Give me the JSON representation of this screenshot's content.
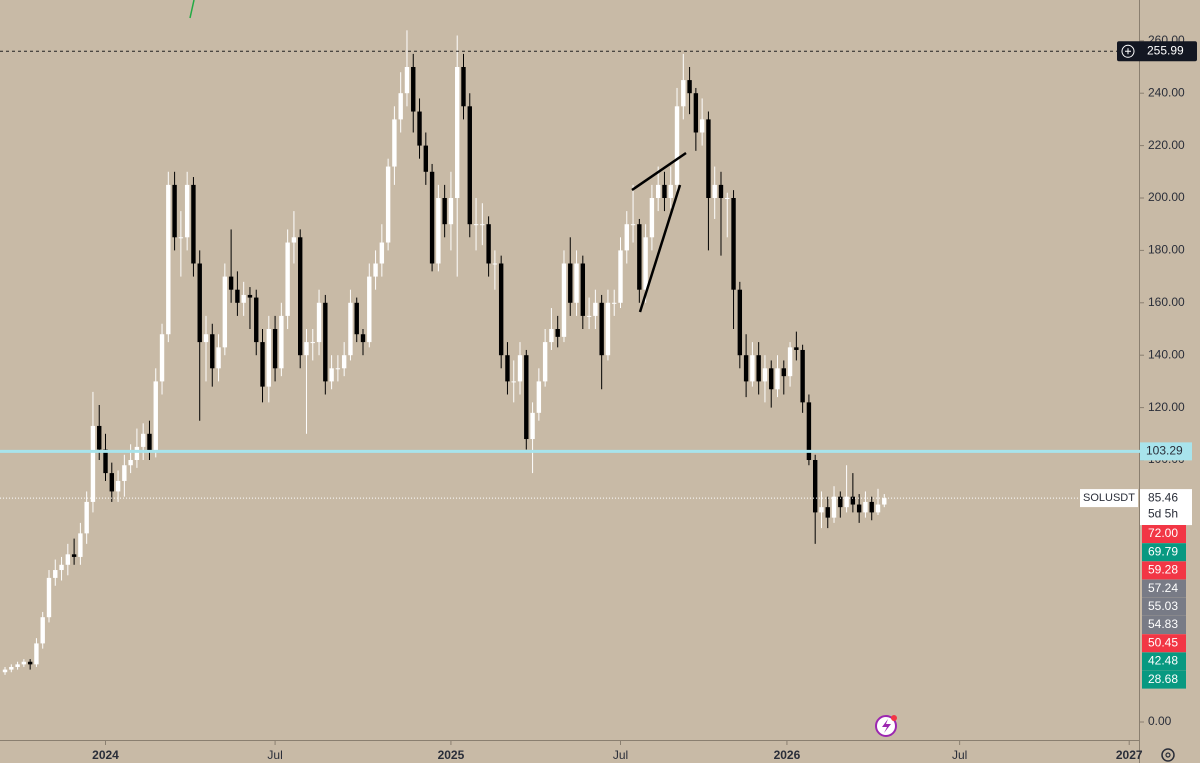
{
  "chart_data": {
    "type": "candlestick",
    "symbol": "SOLUSDT",
    "countdown": "5d 5h",
    "up_color": "#ffffff",
    "down_color": "#000000",
    "last_price": {
      "value": 85.46,
      "label": "85.46"
    },
    "crosshair": {
      "value": 255.99,
      "label": "255.99"
    },
    "hline": {
      "value": 103.29,
      "label": "103.29",
      "color": "#a8e4ec"
    },
    "ylim": [
      -6.87,
      275.57
    ],
    "yticks": [
      {
        "value": 0,
        "label": "0.00"
      },
      {
        "value": 100,
        "label": "100.00"
      },
      {
        "value": 120,
        "label": "120.00"
      },
      {
        "value": 140,
        "label": "140.00"
      },
      {
        "value": 160,
        "label": "160.00"
      },
      {
        "value": 180,
        "label": "180.00"
      },
      {
        "value": 200,
        "label": "200.00"
      },
      {
        "value": 220,
        "label": "220.00"
      },
      {
        "value": 240,
        "label": "240.00"
      },
      {
        "value": 260,
        "label": "260.00"
      }
    ],
    "xlim": [
      -0.8,
      180.4
    ],
    "xticks": [
      {
        "value": 16,
        "label": "2024"
      },
      {
        "value": 43,
        "label": "Jul"
      },
      {
        "value": 71,
        "label": "2025"
      },
      {
        "value": 98,
        "label": "Jul"
      },
      {
        "value": 124.5,
        "label": "2026"
      },
      {
        "value": 152,
        "label": "Jul"
      },
      {
        "value": 179,
        "label": "2027"
      }
    ],
    "badges": [
      {
        "label": "72.00",
        "color": "#f23645"
      },
      {
        "label": "69.79",
        "color": "#089981"
      },
      {
        "label": "59.28",
        "color": "#f23645"
      },
      {
        "label": "57.24",
        "color": "#787b86"
      },
      {
        "label": "55.03",
        "color": "#787b86"
      },
      {
        "label": "54.83",
        "color": "#787b86"
      },
      {
        "label": "50.45",
        "color": "#f23645"
      },
      {
        "label": "42.48",
        "color": "#089981"
      },
      {
        "label": "28.68",
        "color": "#089981"
      }
    ],
    "ohlc": [
      [
        19,
        21,
        18,
        20
      ],
      [
        20,
        22,
        19,
        21
      ],
      [
        21,
        23,
        20,
        22
      ],
      [
        22,
        24,
        21,
        23
      ],
      [
        23,
        24,
        20,
        22
      ],
      [
        22,
        32,
        21,
        30
      ],
      [
        30,
        42,
        28,
        40
      ],
      [
        40,
        58,
        38,
        55
      ],
      [
        55,
        62,
        52,
        58
      ],
      [
        58,
        63,
        54,
        60
      ],
      [
        60,
        68,
        56,
        64
      ],
      [
        64,
        70,
        60,
        63
      ],
      [
        63,
        76,
        60,
        72
      ],
      [
        72,
        88,
        68,
        84
      ],
      [
        84,
        126,
        80,
        113
      ],
      [
        113,
        121,
        100,
        104
      ],
      [
        104,
        110,
        92,
        95
      ],
      [
        95,
        99,
        84,
        88
      ],
      [
        88,
        96,
        84,
        92
      ],
      [
        92,
        102,
        86,
        98
      ],
      [
        98,
        106,
        95,
        100
      ],
      [
        100,
        112,
        97,
        105
      ],
      [
        105,
        114,
        100,
        110
      ],
      [
        110,
        115,
        100,
        103
      ],
      [
        103,
        135,
        101,
        130
      ],
      [
        130,
        152,
        125,
        148
      ],
      [
        148,
        210,
        145,
        205
      ],
      [
        205,
        210,
        180,
        185
      ],
      [
        185,
        195,
        170,
        185
      ],
      [
        185,
        210,
        180,
        205
      ],
      [
        205,
        208,
        170,
        175
      ],
      [
        175,
        180,
        115,
        145
      ],
      [
        145,
        155,
        130,
        148
      ],
      [
        148,
        152,
        128,
        135
      ],
      [
        135,
        148,
        130,
        143
      ],
      [
        143,
        175,
        140,
        170
      ],
      [
        170,
        188,
        160,
        165
      ],
      [
        165,
        172,
        155,
        160
      ],
      [
        160,
        168,
        155,
        163
      ],
      [
        163,
        166,
        150,
        162
      ],
      [
        162,
        165,
        140,
        145
      ],
      [
        145,
        150,
        122,
        128
      ],
      [
        128,
        155,
        122,
        150
      ],
      [
        150,
        155,
        130,
        135
      ],
      [
        135,
        160,
        132,
        155
      ],
      [
        155,
        188,
        150,
        183
      ],
      [
        183,
        195,
        175,
        185
      ],
      [
        185,
        188,
        135,
        140
      ],
      [
        140,
        150,
        110,
        145
      ],
      [
        145,
        150,
        138,
        145
      ],
      [
        145,
        165,
        140,
        160
      ],
      [
        160,
        163,
        125,
        130
      ],
      [
        130,
        140,
        127,
        135
      ],
      [
        135,
        140,
        130,
        135
      ],
      [
        135,
        145,
        132,
        140
      ],
      [
        140,
        165,
        138,
        160
      ],
      [
        160,
        162,
        145,
        148
      ],
      [
        148,
        150,
        140,
        145
      ],
      [
        145,
        175,
        143,
        170
      ],
      [
        170,
        180,
        165,
        175
      ],
      [
        175,
        190,
        170,
        183
      ],
      [
        183,
        215,
        180,
        212
      ],
      [
        212,
        235,
        205,
        230
      ],
      [
        230,
        248,
        225,
        240
      ],
      [
        240,
        264,
        235,
        250
      ],
      [
        250,
        255,
        225,
        233
      ],
      [
        233,
        238,
        215,
        220
      ],
      [
        220,
        225,
        205,
        210
      ],
      [
        210,
        213,
        172,
        175
      ],
      [
        175,
        205,
        172,
        200
      ],
      [
        200,
        205,
        185,
        190
      ],
      [
        190,
        210,
        180,
        200
      ],
      [
        200,
        262,
        170,
        250
      ],
      [
        250,
        255,
        230,
        235
      ],
      [
        235,
        240,
        185,
        190
      ],
      [
        190,
        200,
        180,
        190
      ],
      [
        190,
        198,
        182,
        190
      ],
      [
        190,
        193,
        170,
        175
      ],
      [
        175,
        180,
        165,
        175
      ],
      [
        175,
        178,
        135,
        140
      ],
      [
        140,
        145,
        125,
        130
      ],
      [
        130,
        138,
        122,
        130
      ],
      [
        130,
        145,
        125,
        140
      ],
      [
        140,
        142,
        104,
        108
      ],
      [
        108,
        122,
        95,
        118
      ],
      [
        118,
        135,
        115,
        130
      ],
      [
        130,
        150,
        128,
        145
      ],
      [
        145,
        158,
        142,
        150
      ],
      [
        150,
        155,
        143,
        147
      ],
      [
        147,
        180,
        145,
        175
      ],
      [
        175,
        185,
        155,
        160
      ],
      [
        160,
        180,
        155,
        175
      ],
      [
        175,
        178,
        150,
        155
      ],
      [
        155,
        162,
        150,
        155
      ],
      [
        155,
        165,
        150,
        160
      ],
      [
        160,
        163,
        127,
        140
      ],
      [
        140,
        165,
        138,
        160
      ],
      [
        160,
        165,
        155,
        160
      ],
      [
        160,
        185,
        158,
        180
      ],
      [
        180,
        195,
        175,
        190
      ],
      [
        190,
        205,
        183,
        190
      ],
      [
        190,
        192,
        160,
        165
      ],
      [
        165,
        190,
        160,
        185
      ],
      [
        185,
        205,
        180,
        200
      ],
      [
        200,
        212,
        195,
        205
      ],
      [
        205,
        210,
        195,
        200
      ],
      [
        200,
        212,
        196,
        205
      ],
      [
        205,
        242,
        202,
        235
      ],
      [
        235,
        255,
        230,
        245
      ],
      [
        245,
        250,
        232,
        240
      ],
      [
        240,
        242,
        218,
        225
      ],
      [
        225,
        238,
        220,
        230
      ],
      [
        230,
        233,
        180,
        200
      ],
      [
        200,
        212,
        192,
        205
      ],
      [
        205,
        210,
        178,
        200
      ],
      [
        200,
        202,
        185,
        200
      ],
      [
        200,
        203,
        150,
        165
      ],
      [
        165,
        168,
        135,
        140
      ],
      [
        140,
        148,
        124,
        130
      ],
      [
        130,
        145,
        128,
        140
      ],
      [
        140,
        145,
        125,
        130
      ],
      [
        130,
        140,
        122,
        135
      ],
      [
        135,
        138,
        120,
        127
      ],
      [
        127,
        140,
        124,
        135
      ],
      [
        135,
        138,
        125,
        132
      ],
      [
        132,
        145,
        128,
        143
      ],
      [
        143,
        149,
        138,
        142
      ],
      [
        142,
        144,
        118,
        122
      ],
      [
        122,
        125,
        98,
        100
      ],
      [
        100,
        102,
        68,
        80
      ],
      [
        80,
        88,
        74,
        82
      ],
      [
        82,
        86,
        74,
        78
      ],
      [
        78,
        90,
        76,
        86
      ],
      [
        86,
        88,
        78,
        82
      ],
      [
        82,
        98,
        80,
        86
      ],
      [
        86,
        95,
        80,
        83
      ],
      [
        83,
        87,
        76,
        80
      ],
      [
        80,
        88,
        78,
        84
      ],
      [
        84,
        86,
        77,
        80
      ],
      [
        80,
        89,
        79,
        83
      ],
      [
        83,
        87,
        82,
        85.46
      ]
    ]
  }
}
